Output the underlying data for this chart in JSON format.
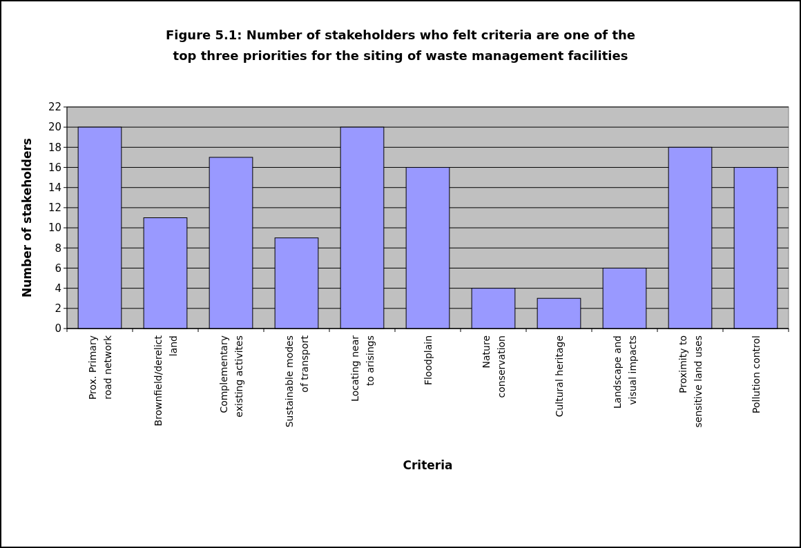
{
  "chart_data": {
    "type": "bar",
    "title": "Figure 5.1: Number of stakeholders who felt criteria are one of the top three priorities for the siting of waste management facilities",
    "xlabel": "Criteria",
    "ylabel": "Number of stakeholders",
    "categories": [
      "Prox. Primary road network",
      "Brownfield/derelict land",
      "Complementary existing activites",
      "Sustainable modes of transport",
      "Locating near to arisings",
      "Floodplain",
      "Nature conservation",
      "Cultural heritage",
      "Landscape and visual impacts",
      "Proximity to sensitive land uses",
      "Pollution control"
    ],
    "values": [
      20,
      11,
      17,
      9,
      20,
      16,
      4,
      3,
      6,
      18,
      16
    ],
    "color": "#9999ff",
    "ylim": [
      0,
      22
    ],
    "yticks": [
      0,
      2,
      4,
      6,
      8,
      10,
      12,
      14,
      16,
      18,
      20,
      22
    ],
    "grid": "y"
  }
}
